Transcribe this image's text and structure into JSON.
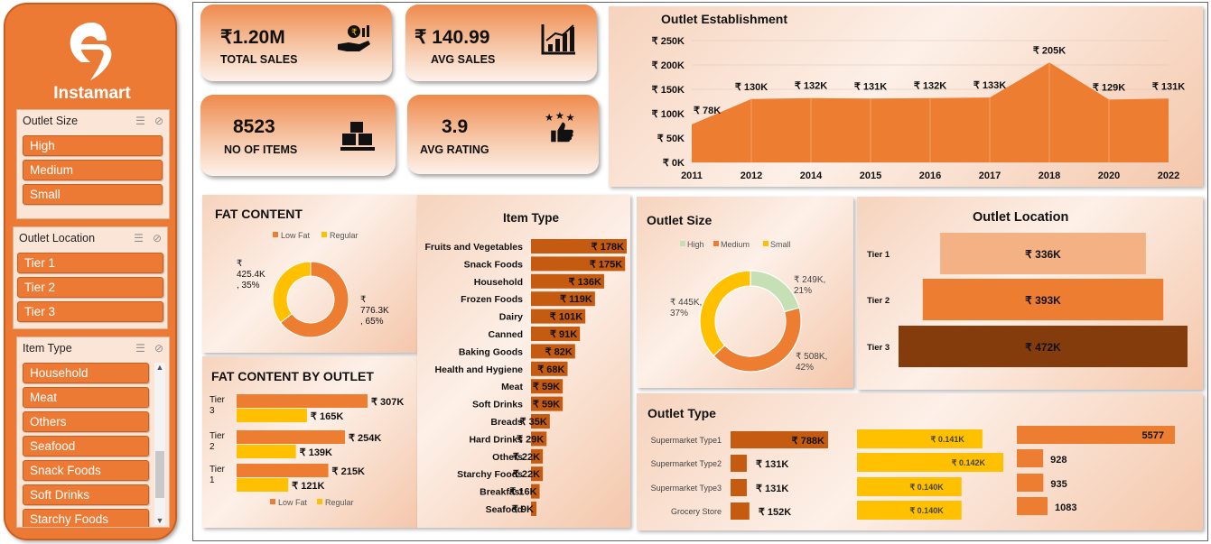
{
  "sidebar": {
    "brand": "Instamart",
    "slicers": [
      {
        "title": "Outlet Size",
        "items": [
          "High",
          "Medium",
          "Small"
        ]
      },
      {
        "title": "Outlet Location",
        "items": [
          "Tier 1",
          "Tier 2",
          "Tier 3"
        ]
      },
      {
        "title": "Item Type",
        "items": [
          "Household",
          "Meat",
          "Others",
          "Seafood",
          "Snack Foods",
          "Soft Drinks",
          "Starchy Foods"
        ]
      }
    ]
  },
  "kpis": {
    "total_sales": {
      "value": "₹1.20M",
      "label": "TOTAL SALES"
    },
    "avg_sales": {
      "value": "₹ 140.99",
      "label": "AVG SALES"
    },
    "no_items": {
      "value": "8523",
      "label": "NO OF ITEMS"
    },
    "avg_rating": {
      "value": "3.9",
      "label": "AVG RATING"
    }
  },
  "colors": {
    "accent": "#ec7a35",
    "orange": "#ed7d31",
    "yellow": "#ffc000",
    "dark": "#843c0c",
    "mid": "#c55a11",
    "light": "#f4b183"
  },
  "outlet_establishment": {
    "title": "Outlet Establishment",
    "chart_data": {
      "type": "area",
      "x": [
        "2011",
        "2012",
        "2014",
        "2015",
        "2016",
        "2017",
        "2018",
        "2020",
        "2022"
      ],
      "values": [
        78,
        130,
        132,
        131,
        132,
        133,
        205,
        129,
        131
      ],
      "labels": [
        "₹ 78K",
        "₹ 130K",
        "₹ 132K",
        "₹ 131K",
        "₹ 132K",
        "₹ 133K",
        "₹ 205K",
        "₹ 129K",
        "₹ 131K"
      ],
      "yticks": [
        "₹ 0K",
        "₹ 50K",
        "₹ 100K",
        "₹ 150K",
        "₹ 200K",
        "₹ 250K"
      ],
      "ylim": [
        0,
        250
      ]
    }
  },
  "fat_content": {
    "title": "FAT CONTENT",
    "chart_data": {
      "type": "pie",
      "legend": [
        "Low Fat",
        "Regular"
      ],
      "values": [
        776.3,
        425.4
      ],
      "labels": [
        "₹\n776.3K\n, 65%",
        "₹\n425.4K\n, 35%"
      ]
    }
  },
  "fat_by_outlet": {
    "title": "FAT CONTENT  BY OUTLET",
    "chart_data": {
      "type": "bar",
      "categories": [
        "Tier 3",
        "Tier 2",
        "Tier 1"
      ],
      "series": [
        {
          "name": "Low Fat",
          "values": [
            307,
            254,
            215
          ],
          "labels": [
            "₹ 307K",
            "₹ 254K",
            "₹ 215K"
          ]
        },
        {
          "name": "Regular",
          "values": [
            165,
            139,
            121
          ],
          "labels": [
            "₹ 165K",
            "₹ 139K",
            "₹ 121K"
          ]
        }
      ]
    }
  },
  "item_type": {
    "title": "Item Type",
    "chart_data": {
      "type": "bar",
      "categories": [
        "Fruits and Vegetables",
        "Snack Foods",
        "Household",
        "Frozen Foods",
        "Dairy",
        "Canned",
        "Baking Goods",
        "Health and Hygiene",
        "Meat",
        "Soft Drinks",
        "Breads",
        "Hard Drinks",
        "Others",
        "Starchy Foods",
        "Breakfast",
        "Seafood"
      ],
      "values": [
        178,
        175,
        136,
        119,
        101,
        91,
        82,
        68,
        59,
        59,
        35,
        29,
        22,
        22,
        16,
        9
      ],
      "labels": [
        "₹ 178K",
        "₹ 175K",
        "₹ 136K",
        "₹ 119K",
        "₹ 101K",
        "₹ 91K",
        "₹ 82K",
        "₹ 68K",
        "₹ 59K",
        "₹ 59K",
        "₹ 35K",
        "₹ 29K",
        "₹ 22K",
        "₹ 22K",
        "₹ 16K",
        "₹ 9K"
      ]
    }
  },
  "outlet_size": {
    "title": "Outlet Size",
    "chart_data": {
      "type": "pie",
      "legend": [
        "High",
        "Medium",
        "Small"
      ],
      "values": [
        249,
        508,
        445
      ],
      "labels": [
        "₹ 249K,\n21%",
        "₹ 508K,\n42%",
        "₹ 445K,\n37%"
      ]
    }
  },
  "outlet_location": {
    "title": "Outlet Location",
    "chart_data": {
      "type": "bar",
      "categories": [
        "Tier 1",
        "Tier 2",
        "Tier 3"
      ],
      "values": [
        336,
        393,
        472
      ],
      "labels": [
        "₹ 336K",
        "₹ 393K",
        "₹ 472K"
      ]
    }
  },
  "outlet_type": {
    "title": "Outlet Type",
    "chart_data": [
      {
        "type": "bar",
        "categories": [
          "Supermarket Type1",
          "Supermarket Type2",
          "Supermarket Type3",
          "Grocery Store"
        ],
        "values": [
          788,
          131,
          131,
          152
        ],
        "labels": [
          "₹ 788K",
          "₹ 131K",
          "₹ 131K",
          "₹ 152K"
        ]
      },
      {
        "type": "bar",
        "categories": [
          "Supermarket Type1",
          "Supermarket Type2",
          "Supermarket Type3",
          "Grocery Store"
        ],
        "values": [
          0.141,
          0.142,
          0.14,
          0.14
        ],
        "labels": [
          "₹ 0.141K",
          "₹ 0.142K",
          "₹ 0.140K",
          "₹ 0.140K"
        ]
      },
      {
        "type": "bar",
        "categories": [
          "Supermarket Type1",
          "Supermarket Type2",
          "Supermarket Type3",
          "Grocery Store"
        ],
        "values": [
          5577,
          928,
          935,
          1083
        ],
        "labels": [
          "5577",
          "928",
          "935",
          "1083"
        ]
      }
    ]
  }
}
